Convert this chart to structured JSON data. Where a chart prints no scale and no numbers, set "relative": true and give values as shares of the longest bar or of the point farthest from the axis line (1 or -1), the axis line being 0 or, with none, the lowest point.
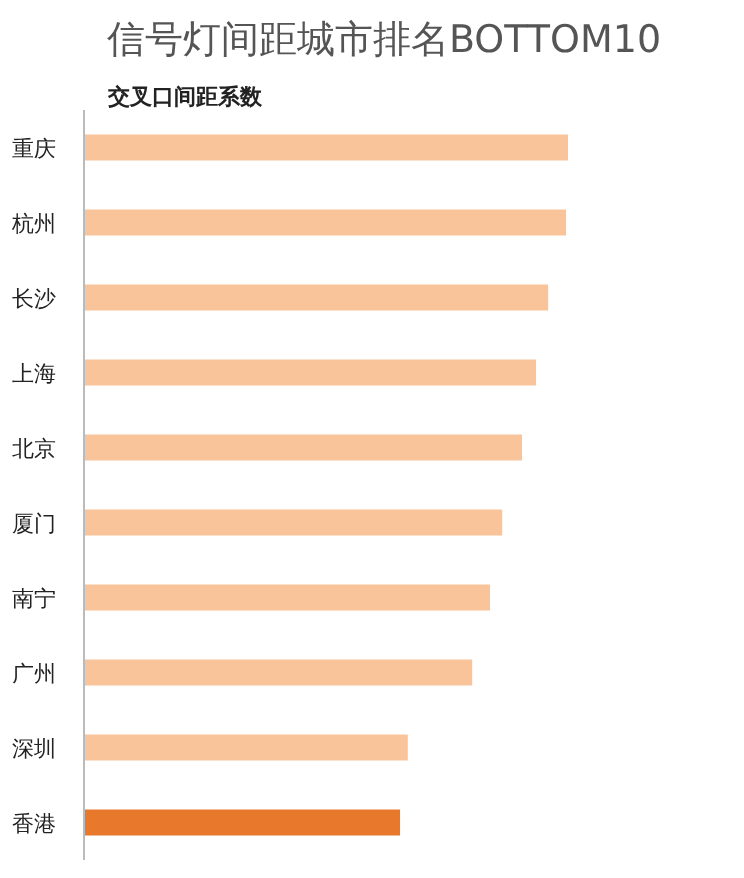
{
  "chart_data": {
    "type": "bar",
    "orientation": "horizontal",
    "relative": true,
    "title": "信号灯间距城市排名BOTTOM10",
    "subtitle": "交叉口间距系数",
    "categories": [
      "重庆",
      "杭州",
      "长沙",
      "上海",
      "北京",
      "厦门",
      "南宁",
      "广州",
      "深圳",
      "香港"
    ],
    "values": [
      1,
      0.996,
      0.959,
      0.934,
      0.905,
      0.864,
      0.839,
      0.802,
      0.669,
      0.653
    ],
    "colors": [
      "#f9c49a",
      "#f9c49a",
      "#f9c49a",
      "#f9c49a",
      "#f9c49a",
      "#f9c49a",
      "#f9c49a",
      "#f9c49a",
      "#f9c49a",
      "#e8782c"
    ]
  }
}
